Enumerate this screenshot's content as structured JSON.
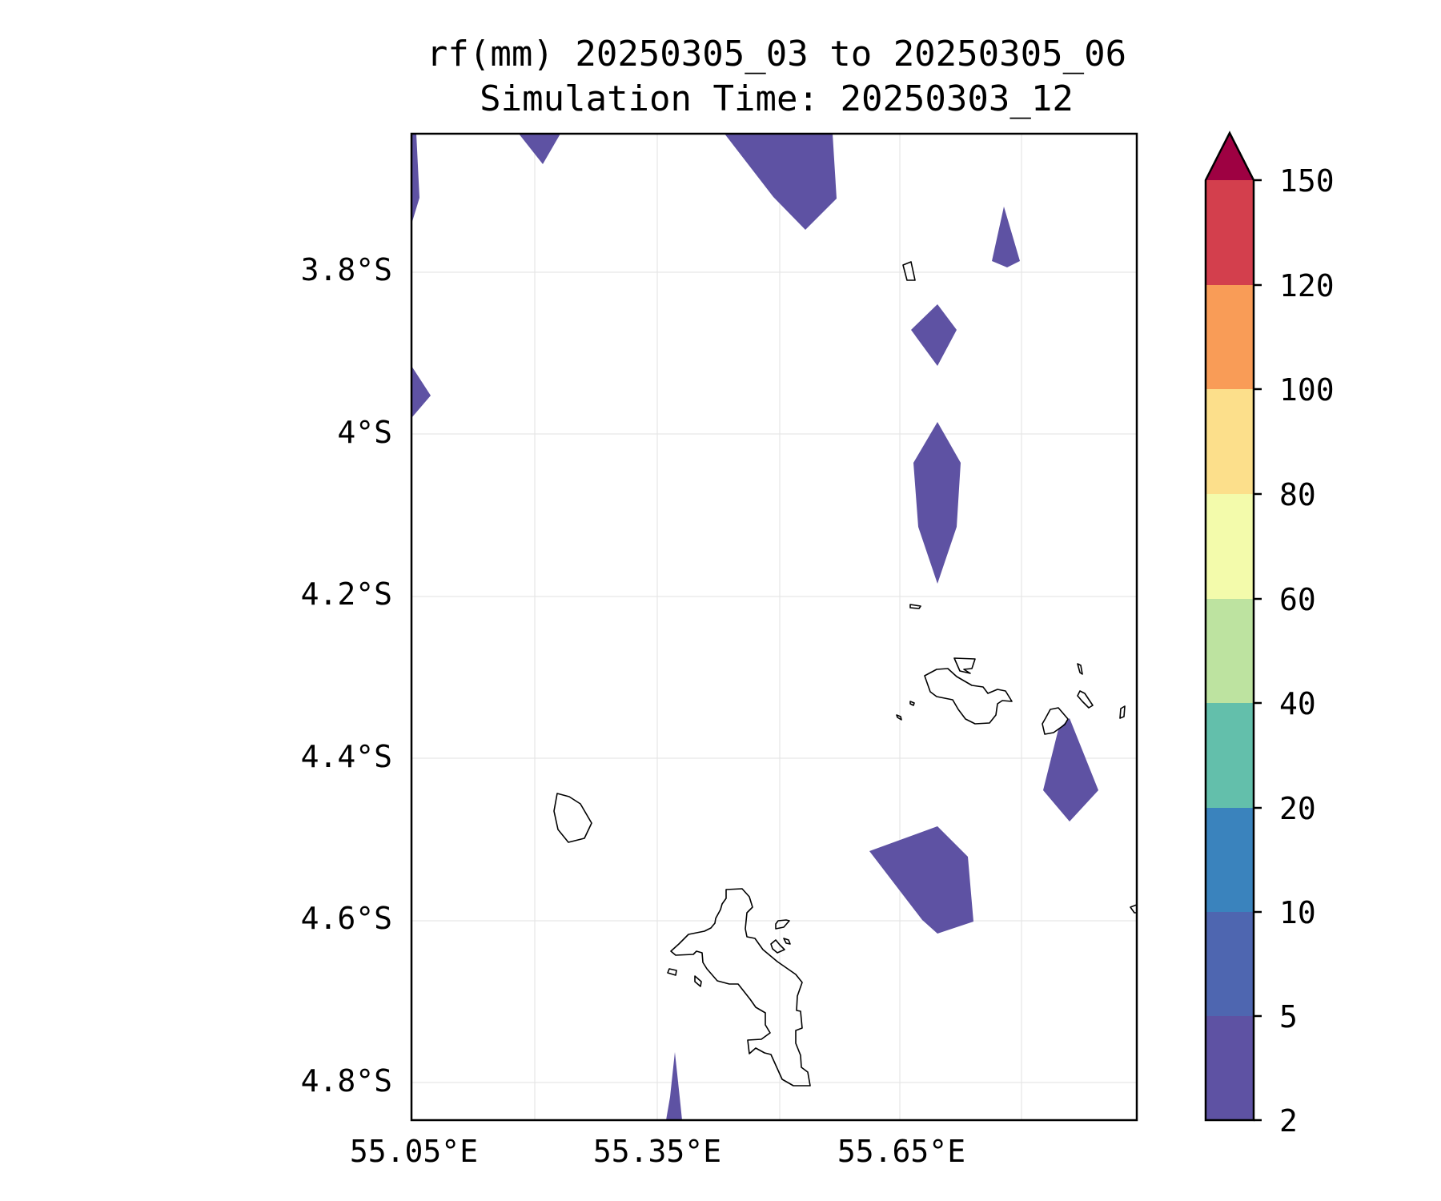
{
  "title": {
    "line1": "rf(mm) 20250305_03 to 20250305_06",
    "line2": "Simulation Time: 20250303_12"
  },
  "map": {
    "lon_range": [
      55.05,
      55.95
    ],
    "lat_range": [
      -3.63,
      -4.85
    ],
    "x_ticks": [
      {
        "value": 55.05,
        "label": "55.05°E"
      },
      {
        "value": 55.35,
        "label": "55.35°E"
      },
      {
        "value": 55.65,
        "label": "55.65°E"
      }
    ],
    "y_ticks": [
      {
        "value": -3.8,
        "label": "3.8°S"
      },
      {
        "value": -4.0,
        "label": "4°S"
      },
      {
        "value": -4.2,
        "label": "4.2°S"
      },
      {
        "value": -4.4,
        "label": "4.4°S"
      },
      {
        "value": -4.6,
        "label": "4.6°S"
      },
      {
        "value": -4.8,
        "label": "4.8°S"
      }
    ],
    "gridlines": true
  },
  "colorbar": {
    "extend": "max",
    "levels": [
      "2",
      "5",
      "10",
      "20",
      "40",
      "60",
      "80",
      "100",
      "120",
      "150"
    ],
    "colors": [
      "#5e52a3",
      "#4e66b0",
      "#3a83bd",
      "#63bfab",
      "#bde3a0",
      "#f3fbab",
      "#fcdf8b",
      "#f99c57",
      "#d33f4d"
    ],
    "extend_color": "#9e0142"
  },
  "precip_color": "#5e52a3"
}
